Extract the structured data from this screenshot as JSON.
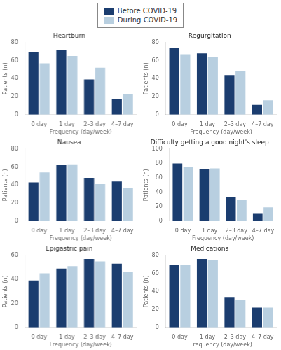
{
  "chart_data": [
    {
      "type": "bar",
      "title": "Heartburn",
      "xlabel": "Frequency (day/week)",
      "ylabel": "Patients (n)",
      "categories": [
        "0 day",
        "1 day",
        "2–3 day",
        "4–7 day"
      ],
      "series": [
        {
          "name": "Before COVID-19",
          "color": "#1b3d6f",
          "values": [
            69,
            72,
            39,
            17
          ]
        },
        {
          "name": "During COVID-19",
          "color": "#b8cfe0",
          "values": [
            57,
            65,
            52,
            23
          ]
        }
      ],
      "ylim": [
        0,
        80
      ],
      "yticks": [
        0,
        20,
        40,
        60,
        80
      ],
      "grid": false,
      "legend": "top"
    },
    {
      "type": "bar",
      "title": "Regurgitation",
      "xlabel": "Frequency (day/week)",
      "ylabel": "Patients (n)",
      "categories": [
        "0 day",
        "1 day",
        "2–3 day",
        "4–7 day"
      ],
      "series": [
        {
          "name": "Before COVID-19",
          "color": "#1b3d6f",
          "values": [
            74,
            68,
            44,
            11
          ]
        },
        {
          "name": "During COVID-19",
          "color": "#b8cfe0",
          "values": [
            67,
            64,
            48,
            16
          ]
        }
      ],
      "ylim": [
        0,
        80
      ],
      "yticks": [
        0,
        20,
        40,
        60,
        80
      ],
      "grid": false,
      "legend": "top"
    },
    {
      "type": "bar",
      "title": "Nausea",
      "xlabel": "Frequency (day/week)",
      "ylabel": "Patients (n)",
      "categories": [
        "0 day",
        "1 day",
        "2–3 day",
        "4–7 day"
      ],
      "series": [
        {
          "name": "Before COVID-19",
          "color": "#1b3d6f",
          "values": [
            43,
            62,
            48,
            44
          ]
        },
        {
          "name": "During COVID-19",
          "color": "#b8cfe0",
          "values": [
            54,
            63,
            41,
            37
          ]
        }
      ],
      "ylim": [
        0,
        80
      ],
      "yticks": [
        0,
        20,
        40,
        60,
        80
      ],
      "grid": false,
      "legend": "top"
    },
    {
      "type": "bar",
      "title": "Difficulty getting a good night's sleep",
      "xlabel": "Frequency (day/week)",
      "ylabel": "Patients (n)",
      "categories": [
        "0 day",
        "1 day",
        "2–3 day",
        "4–7 day"
      ],
      "series": [
        {
          "name": "Before COVID-19",
          "color": "#1b3d6f",
          "values": [
            80,
            72,
            33,
            11
          ]
        },
        {
          "name": "During COVID-19",
          "color": "#b8cfe0",
          "values": [
            75,
            73,
            30,
            19
          ]
        }
      ],
      "ylim": [
        0,
        100
      ],
      "yticks": [
        0,
        20,
        40,
        60,
        80,
        100
      ],
      "grid": false,
      "legend": "top"
    },
    {
      "type": "bar",
      "title": "Epigastric pain",
      "xlabel": "Frequency (day/week)",
      "ylabel": "Patients (n)",
      "categories": [
        "0 day",
        "1 day",
        "2–3 day",
        "4–7 day"
      ],
      "series": [
        {
          "name": "Before COVID-19",
          "color": "#1b3d6f",
          "values": [
            39,
            49,
            57,
            53
          ]
        },
        {
          "name": "During COVID-19",
          "color": "#b8cfe0",
          "values": [
            45,
            51,
            55,
            46
          ]
        }
      ],
      "ylim": [
        0,
        60
      ],
      "yticks": [
        0,
        20,
        40,
        60
      ],
      "grid": false,
      "legend": "top"
    },
    {
      "type": "bar",
      "title": "Medications",
      "xlabel": "Frequency (day/week)",
      "ylabel": "Patients (n)",
      "categories": [
        "0 day",
        "1 day",
        "2–3 day",
        "4–7 day"
      ],
      "series": [
        {
          "name": "Before COVID-19",
          "color": "#1b3d6f",
          "values": [
            69,
            76,
            33,
            22
          ]
        },
        {
          "name": "During COVID-19",
          "color": "#b8cfe0",
          "values": [
            69,
            75,
            31,
            22
          ]
        }
      ],
      "ylim": [
        0,
        80
      ],
      "yticks": [
        0,
        20,
        40,
        60,
        80
      ],
      "grid": false,
      "legend": "top"
    }
  ]
}
